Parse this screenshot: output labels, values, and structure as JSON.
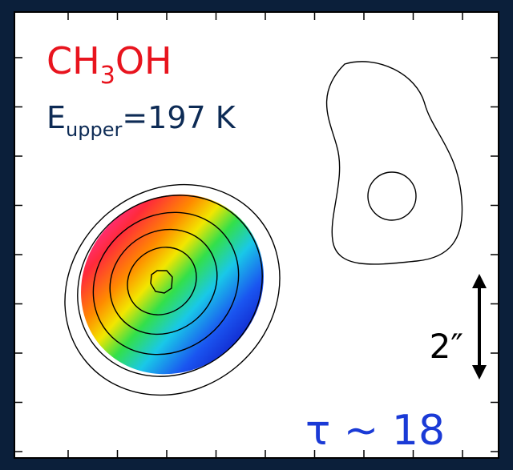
{
  "labels": {
    "molecule": {
      "prefix": "CH",
      "subscript": "3",
      "suffix": "OH"
    },
    "energy": {
      "prefix": "E",
      "subscript": "upper",
      "suffix": "=197 K"
    },
    "scale_bar": "2″",
    "optical_depth": "τ ~ 18"
  }
}
